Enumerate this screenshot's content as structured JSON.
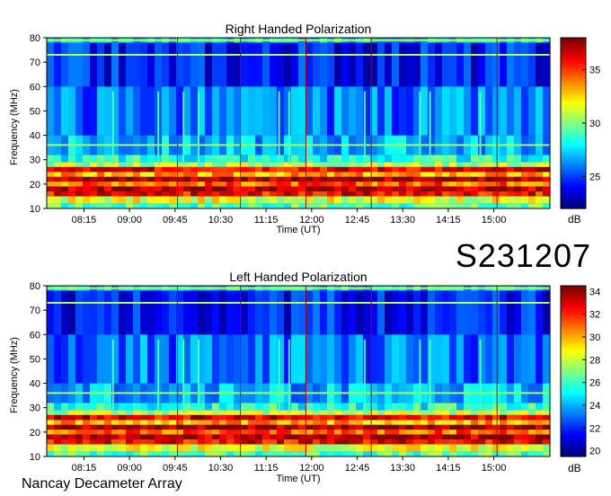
{
  "chart_data": [
    {
      "type": "heatmap",
      "title": "Right Handed Polarization",
      "xlabel": "Time (UT)",
      "ylabel": "Frequency (MHz)",
      "x_ticks": [
        "08:15",
        "09:00",
        "09:45",
        "10:30",
        "11:15",
        "12:00",
        "12:45",
        "13:30",
        "14:15",
        "15:00"
      ],
      "y_ticks": [
        10,
        20,
        30,
        40,
        50,
        60,
        70,
        80
      ],
      "ylim": [
        10,
        80
      ],
      "colorbar": {
        "label": "dB",
        "ticks": [
          25,
          30,
          35
        ],
        "range": [
          22,
          38
        ]
      },
      "colors": {
        "low": "#00007f",
        "mid": "#00c8ff",
        "high": "#ff0000",
        "top": "#7f0000"
      }
    },
    {
      "type": "heatmap",
      "title": "Left Handed Polarization",
      "xlabel": "Time (UT)",
      "ylabel": "Frequency (MHz)",
      "x_ticks": [
        "08:15",
        "09:00",
        "09:45",
        "10:30",
        "11:15",
        "12:00",
        "12:45",
        "13:30",
        "14:15",
        "15:00"
      ],
      "y_ticks": [
        10,
        20,
        30,
        40,
        50,
        60,
        70,
        80
      ],
      "ylim": [
        10,
        80
      ],
      "colorbar": {
        "label": "dB",
        "ticks": [
          20,
          22,
          24,
          26,
          28,
          30,
          32,
          34
        ],
        "range": [
          19.5,
          34.5
        ]
      },
      "colors": {
        "low": "#00007f",
        "mid": "#00c8ff",
        "high": "#ff0000",
        "top": "#7f0000"
      }
    }
  ],
  "observation_code": "S231207",
  "footer": "Nancay Decameter Array"
}
